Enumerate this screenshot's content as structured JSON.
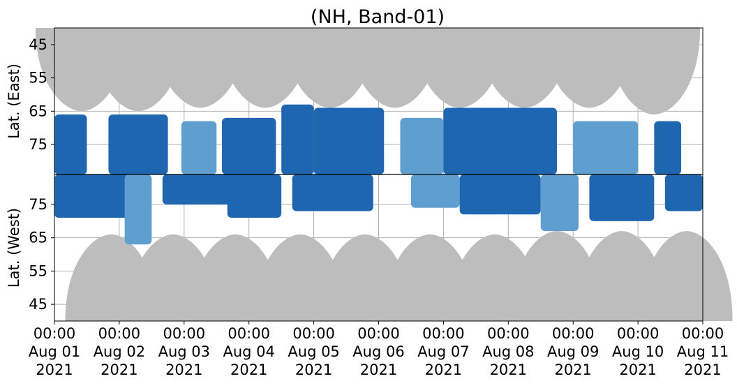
{
  "chart_data": {
    "type": "heatmap",
    "title": "(NH, Band-01)",
    "upper_panel": {
      "ylabel": "Lat. (East)",
      "ytick_labels": [
        "45",
        "55",
        "65",
        "75"
      ],
      "ylim": [
        40,
        84
      ],
      "y_inverted": true
    },
    "lower_panel": {
      "ylabel": "Lat. (West)",
      "ytick_labels": [
        "75",
        "65",
        "55",
        "45"
      ],
      "ylim": [
        40,
        84
      ]
    },
    "x_tick_labels": [
      [
        "00:00",
        "Aug 01",
        "2021"
      ],
      [
        "00:00",
        "Aug 02",
        "2021"
      ],
      [
        "00:00",
        "Aug 03",
        "2021"
      ],
      [
        "00:00",
        "Aug 04",
        "2021"
      ],
      [
        "00:00",
        "Aug 05",
        "2021"
      ],
      [
        "00:00",
        "Aug 06",
        "2021"
      ],
      [
        "00:00",
        "Aug 07",
        "2021"
      ],
      [
        "00:00",
        "Aug 08",
        "2021"
      ],
      [
        "00:00",
        "Aug 09",
        "2021"
      ],
      [
        "00:00",
        "Aug 10",
        "2021"
      ],
      [
        "00:00",
        "Aug 11",
        "2021"
      ]
    ],
    "xlim": [
      "2021-08-01 00:00",
      "2021-08-11 00:00"
    ],
    "grid": true,
    "colors": {
      "night_mask": "#bdbdbd",
      "strong": "#1f66b0",
      "weak": "#5e9fd0",
      "divider": "#000000"
    },
    "night_mask_east": [
      {
        "center": "2021-08-01 10:00",
        "edge_lat": 65
      },
      {
        "center": "2021-08-02 07:00",
        "edge_lat": 65
      },
      {
        "center": "2021-08-03 06:00",
        "edge_lat": 64
      },
      {
        "center": "2021-08-04 06:00",
        "edge_lat": 64
      },
      {
        "center": "2021-08-05 06:00",
        "edge_lat": 64
      },
      {
        "center": "2021-08-06 06:00",
        "edge_lat": 64
      },
      {
        "center": "2021-08-07 06:00",
        "edge_lat": 64
      },
      {
        "center": "2021-08-08 06:00",
        "edge_lat": 64
      },
      {
        "center": "2021-08-09 06:00",
        "edge_lat": 64
      },
      {
        "center": "2021-08-10 06:00",
        "edge_lat": 66
      }
    ],
    "night_mask_west": [
      {
        "center": "2021-08-01 21:00",
        "edge_lat": 66
      },
      {
        "center": "2021-08-02 20:00",
        "edge_lat": 66
      },
      {
        "center": "2021-08-03 19:00",
        "edge_lat": 66
      },
      {
        "center": "2021-08-04 19:00",
        "edge_lat": 66
      },
      {
        "center": "2021-08-05 19:00",
        "edge_lat": 66
      },
      {
        "center": "2021-08-06 19:00",
        "edge_lat": 66
      },
      {
        "center": "2021-08-07 19:00",
        "edge_lat": 66
      },
      {
        "center": "2021-08-08 18:00",
        "edge_lat": 67
      },
      {
        "center": "2021-08-09 18:00",
        "edge_lat": 67
      },
      {
        "center": "2021-08-10 18:00",
        "edge_lat": 67
      }
    ],
    "activity_east": [
      {
        "start": "2021-08-01 00:00",
        "end": "2021-08-01 12:00",
        "min_lat": 66,
        "level": "strong"
      },
      {
        "start": "2021-08-01 20:00",
        "end": "2021-08-02 18:00",
        "min_lat": 66,
        "level": "strong"
      },
      {
        "start": "2021-08-02 23:00",
        "end": "2021-08-03 12:00",
        "min_lat": 68,
        "level": "weak"
      },
      {
        "start": "2021-08-03 14:00",
        "end": "2021-08-04 10:00",
        "min_lat": 67,
        "level": "strong"
      },
      {
        "start": "2021-08-04 12:00",
        "end": "2021-08-05 00:00",
        "min_lat": 63,
        "level": "strong"
      },
      {
        "start": "2021-08-05 00:00",
        "end": "2021-08-06 02:00",
        "min_lat": 64,
        "level": "strong"
      },
      {
        "start": "2021-08-06 08:00",
        "end": "2021-08-07 00:00",
        "min_lat": 67,
        "level": "weak"
      },
      {
        "start": "2021-08-07 00:00",
        "end": "2021-08-08 18:00",
        "min_lat": 64,
        "level": "strong"
      },
      {
        "start": "2021-08-09 00:00",
        "end": "2021-08-10 00:00",
        "min_lat": 68,
        "level": "weak"
      },
      {
        "start": "2021-08-10 06:00",
        "end": "2021-08-10 16:00",
        "min_lat": 68,
        "level": "strong"
      }
    ],
    "activity_west": [
      {
        "start": "2021-08-01 00:00",
        "end": "2021-08-02 06:00",
        "min_lat": 71,
        "level": "strong"
      },
      {
        "start": "2021-08-02 02:00",
        "end": "2021-08-02 12:00",
        "min_lat": 63,
        "level": "weak"
      },
      {
        "start": "2021-08-02 16:00",
        "end": "2021-08-03 18:00",
        "min_lat": 75,
        "level": "strong"
      },
      {
        "start": "2021-08-03 16:00",
        "end": "2021-08-04 12:00",
        "min_lat": 71,
        "level": "strong"
      },
      {
        "start": "2021-08-04 16:00",
        "end": "2021-08-05 22:00",
        "min_lat": 73,
        "level": "strong"
      },
      {
        "start": "2021-08-06 12:00",
        "end": "2021-08-07 06:00",
        "min_lat": 74,
        "level": "weak"
      },
      {
        "start": "2021-08-07 06:00",
        "end": "2021-08-08 12:00",
        "min_lat": 72,
        "level": "strong"
      },
      {
        "start": "2021-08-08 12:00",
        "end": "2021-08-09 02:00",
        "min_lat": 67,
        "level": "weak"
      },
      {
        "start": "2021-08-09 06:00",
        "end": "2021-08-10 06:00",
        "min_lat": 70,
        "level": "strong"
      },
      {
        "start": "2021-08-10 10:00",
        "end": "2021-08-11 00:00",
        "min_lat": 73,
        "level": "strong"
      }
    ]
  }
}
